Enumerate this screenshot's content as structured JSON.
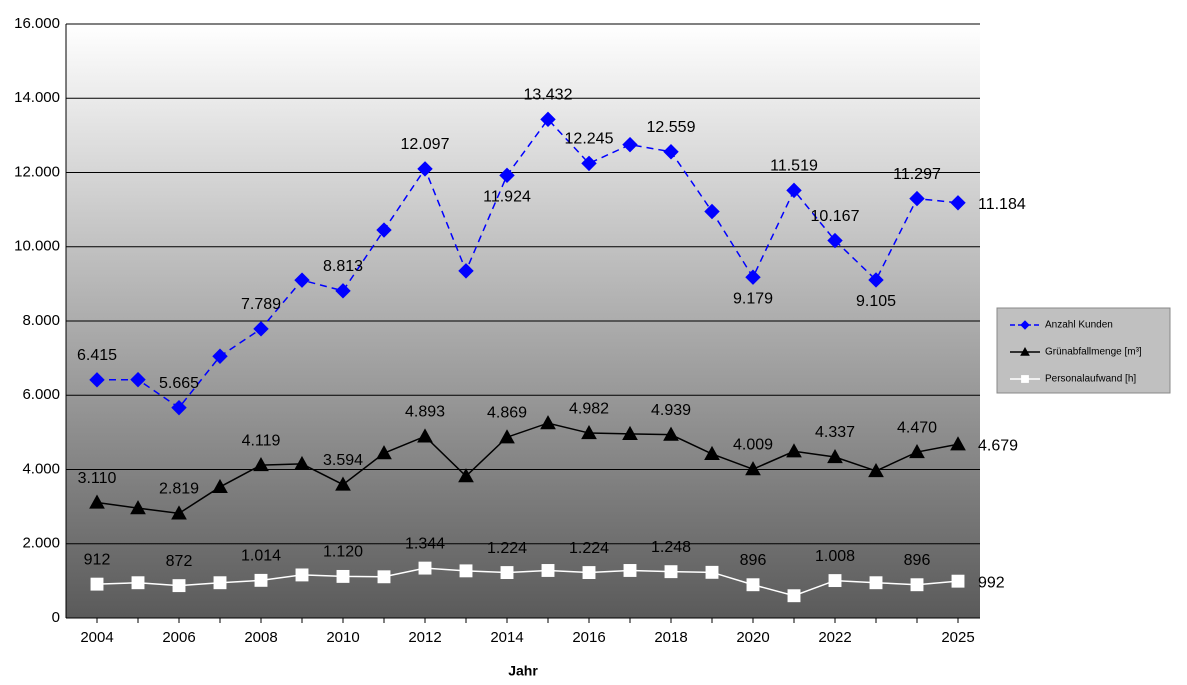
{
  "chart_data": {
    "type": "line",
    "x_label": "Jahr",
    "categories": [
      "2004",
      null,
      "2006",
      null,
      "2008",
      null,
      "2010",
      null,
      "2012",
      null,
      "2014",
      null,
      "2016",
      null,
      "2018",
      null,
      "2020",
      null,
      "2022",
      null,
      null,
      "2025"
    ],
    "ylim": [
      0,
      16000
    ],
    "yticks": [
      0,
      {
        "value": 2000,
        "label": "2.000"
      },
      {
        "value": 4000,
        "label": "4.000"
      },
      {
        "value": 6000,
        "label": "6.000"
      },
      {
        "value": 8000,
        "label": "8.000"
      },
      {
        "value": 10000,
        "label": "10.000"
      },
      {
        "value": 12000,
        "label": "12.000"
      },
      {
        "value": 14000,
        "label": "14.000"
      },
      {
        "value": 16000,
        "label": "16.000"
      }
    ],
    "grid": true,
    "legend": "right",
    "series": [
      {
        "name": "Anzahl Kunden",
        "color": "#0000ff",
        "marker": "diamond",
        "linestyle": "dashed",
        "values": [
          6415,
          6420,
          5665,
          7050,
          7789,
          9100,
          8813,
          10450,
          12097,
          9350,
          11924,
          13432,
          12245,
          12750,
          12559,
          10950,
          9179,
          11519,
          10167,
          9105,
          11297,
          11184
        ],
        "value_labels": [
          "6.415",
          null,
          "5.665",
          null,
          "7.789",
          null,
          "8.813",
          null,
          "12.097",
          null,
          "11.924",
          "13.432",
          "12.245",
          null,
          "12.559",
          null,
          "9.179",
          "11.519",
          "10.167",
          "9.105",
          "11.297",
          "11.184"
        ]
      },
      {
        "name": "Grünabfallmenge [m³]",
        "color": "#000000",
        "marker": "triangle",
        "linestyle": "solid",
        "values": [
          3110,
          2960,
          2819,
          3530,
          4119,
          4150,
          3594,
          4440,
          4893,
          3820,
          4869,
          5250,
          4982,
          4960,
          4939,
          4420,
          4009,
          4490,
          4337,
          3960,
          4470,
          4679
        ],
        "value_labels": [
          "3.110",
          null,
          "2.819",
          null,
          "4.119",
          null,
          "3.594",
          null,
          "4.893",
          null,
          "4.869",
          null,
          "4.982",
          null,
          "4.939",
          null,
          "4.009",
          null,
          "4.337",
          null,
          "4.470",
          "4.679"
        ]
      },
      {
        "name": "Personalaufwand [h]",
        "color": "#ffffff",
        "marker": "square",
        "linestyle": "solid",
        "values": [
          912,
          950,
          872,
          950,
          1014,
          1160,
          1120,
          1110,
          1344,
          1270,
          1224,
          1280,
          1224,
          1280,
          1248,
          1230,
          896,
          600,
          1008,
          950,
          896,
          992
        ],
        "value_labels": [
          "912",
          null,
          "872",
          null,
          "1.014",
          null,
          "1.120",
          null,
          "1.344",
          null,
          "1.224",
          null,
          "1.224",
          null,
          "1.248",
          null,
          "896",
          null,
          "1.008",
          null,
          "896",
          "992"
        ]
      }
    ]
  }
}
